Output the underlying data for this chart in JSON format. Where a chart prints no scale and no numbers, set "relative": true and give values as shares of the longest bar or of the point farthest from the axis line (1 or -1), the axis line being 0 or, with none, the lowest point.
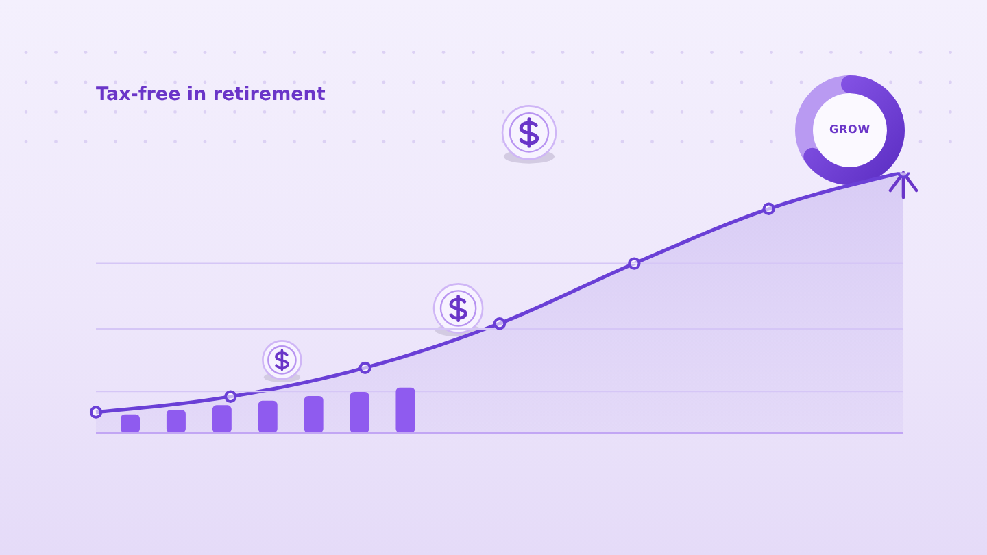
{
  "chart_data": [
    {
      "type": "area",
      "title": "Tax-free in retirement",
      "relative": true,
      "categories": [
        null,
        null,
        null,
        null,
        null,
        null,
        null
      ],
      "values": [
        0.08,
        0.14,
        0.25,
        0.42,
        0.65,
        0.86,
        1
      ],
      "color": "#6a3fd6",
      "marker": "circle",
      "ref_lines": [
        {
          "axis": "y",
          "value": 0.16,
          "color": "#d5c6f6"
        },
        {
          "axis": "y",
          "value": 0.4,
          "color": "#d5c6f6"
        },
        {
          "axis": "y",
          "value": 0.65,
          "color": "#d5c6f6"
        }
      ],
      "annotations": [
        "GROW"
      ]
    },
    {
      "type": "bar",
      "relative": true,
      "categories": [
        null,
        null,
        null,
        null,
        null,
        null,
        null
      ],
      "values": [
        0.41,
        0.51,
        0.61,
        0.71,
        0.81,
        0.9,
        1
      ],
      "color": "#8f5bef"
    }
  ]
}
